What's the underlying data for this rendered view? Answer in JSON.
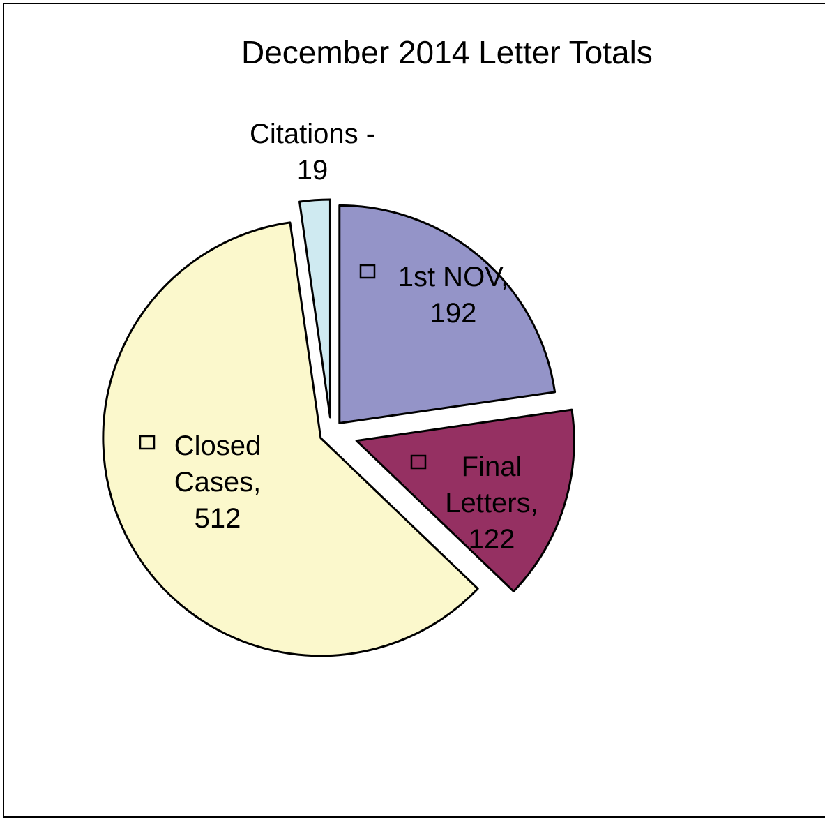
{
  "chart_data": {
    "type": "pie",
    "title": "December 2014 Letter Totals",
    "slices": [
      {
        "name": "1st NOV",
        "value": 192,
        "color": "#9494c8",
        "label": [
          "1st NOV,",
          "192"
        ],
        "legend_key": true
      },
      {
        "name": "Final Letters",
        "value": 122,
        "color": "#953062",
        "label": [
          "Final",
          "Letters,",
          "122"
        ],
        "legend_key": true
      },
      {
        "name": "Closed Cases",
        "value": 512,
        "color": "#fbf8cc",
        "label": [
          "Closed",
          "Cases,",
          "512"
        ],
        "legend_key": true
      },
      {
        "name": "Citations",
        "value": 19,
        "color": "#cfeaf1",
        "label": [
          "Citations -",
          "19"
        ],
        "legend_key": false
      }
    ],
    "start_angle": "12 o'clock",
    "direction": "clockwise",
    "exploded": true,
    "legend": "none",
    "data_labels": "category and value"
  }
}
